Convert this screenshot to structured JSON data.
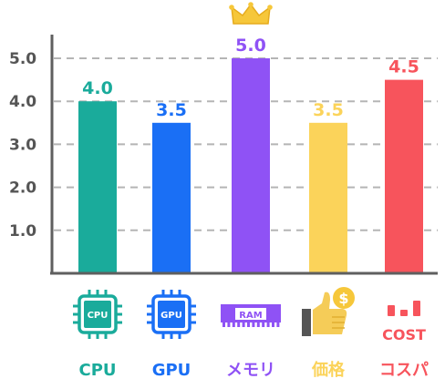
{
  "chart_data": {
    "type": "bar",
    "title": "",
    "xlabel": "",
    "ylabel": "",
    "ylim": [
      0,
      5.0
    ],
    "yticks": [
      "1.0",
      "2.0",
      "3.0",
      "4.0",
      "5.0"
    ],
    "grid": true,
    "categories": [
      "CPU",
      "GPU",
      "メモリ",
      "価格",
      "コスパ"
    ],
    "values": [
      4.0,
      3.5,
      5.0,
      3.5,
      4.5
    ],
    "value_labels": [
      "4.0",
      "3.5",
      "5.0",
      "3.5",
      "4.5"
    ],
    "colors": [
      "#1aab9b",
      "#1a6ff5",
      "#8f52f5",
      "#fbd35a",
      "#f7545c"
    ],
    "highlight_index": 2,
    "highlight_icon": "crown-icon",
    "icons": [
      {
        "name": "cpu-chip-icon",
        "text": "CPU"
      },
      {
        "name": "gpu-chip-icon",
        "text": "GPU"
      },
      {
        "name": "ram-module-icon",
        "text": "RAM"
      },
      {
        "name": "thumbs-up-coin-icon",
        "text": "$"
      },
      {
        "name": "cost-bars-icon",
        "text": "COST"
      }
    ]
  }
}
